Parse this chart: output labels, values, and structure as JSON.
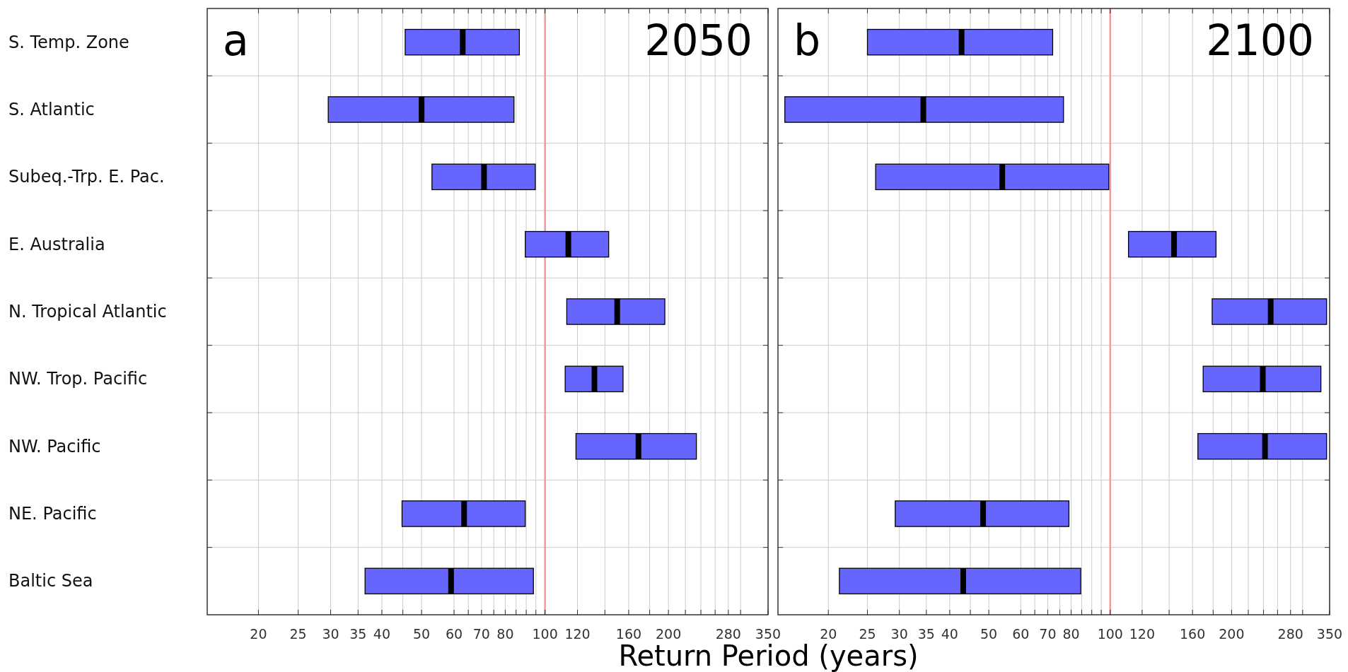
{
  "chart_data": [
    {
      "type": "box",
      "orientation": "horizontal",
      "title": "2050",
      "annotations": [
        "a"
      ],
      "xlabel": "Return Period (years)",
      "categories": [
        "S. Temp. Zone",
        "S. Atlantic",
        "Subeq.-Trp. E. Pac.",
        "E. Australia",
        "N. Tropical Atlantic",
        "NW. Trop. Pacific",
        "NW. Pacific",
        "NE. Pacific",
        "Baltic Sea"
      ],
      "color": "#6666ff",
      "boxes": [
        {
          "low": 45.6,
          "q1": 45.6,
          "median": 63,
          "q3": 86.6,
          "high": 86.6
        },
        {
          "low": 29.6,
          "q1": 29.6,
          "median": 50,
          "q3": 84,
          "high": 84
        },
        {
          "low": 53,
          "q1": 53,
          "median": 71,
          "q3": 94.7,
          "high": 94.7
        },
        {
          "low": 89.5,
          "q1": 89.5,
          "median": 114,
          "q3": 143,
          "high": 143
        },
        {
          "low": 113,
          "q1": 113,
          "median": 150,
          "q3": 196,
          "high": 196
        },
        {
          "low": 112,
          "q1": 112,
          "median": 132,
          "q3": 155,
          "high": 155
        },
        {
          "low": 119,
          "q1": 119,
          "median": 169,
          "q3": 234,
          "high": 234
        },
        {
          "low": 44.8,
          "q1": 44.8,
          "median": 63.5,
          "q3": 89.5,
          "high": 89.5
        },
        {
          "low": 36.4,
          "q1": 36.4,
          "median": 59,
          "q3": 93.7,
          "high": 93.7
        }
      ],
      "log": "x",
      "xlim": [
        15,
        350
      ],
      "xticks": [
        20,
        25,
        30,
        35,
        40,
        {
          "value": 45,
          "label": null
        },
        50,
        60,
        {
          "value": 65,
          "label": null
        },
        70,
        {
          "value": 75,
          "label": null
        },
        80,
        {
          "value": 85,
          "label": null
        },
        {
          "value": 90,
          "label": null
        },
        {
          "value": 95,
          "label": null
        },
        100,
        120,
        {
          "value": 140,
          "label": null
        },
        160,
        {
          "value": 180,
          "label": null
        },
        200,
        {
          "value": 220,
          "label": null
        },
        {
          "value": 240,
          "label": null
        },
        {
          "value": 260,
          "label": null
        },
        280,
        {
          "value": 300,
          "label": null
        },
        350
      ],
      "ref_lines": [
        {
          "axis": "x",
          "value": 100,
          "color": "#f09a9a"
        }
      ],
      "grid": true
    },
    {
      "type": "box",
      "orientation": "horizontal",
      "title": "2100",
      "annotations": [
        "b"
      ],
      "categories": [
        null,
        null,
        null,
        null,
        null,
        null,
        null,
        null,
        null
      ],
      "color": "#6666ff",
      "boxes": [
        {
          "low": 25,
          "q1": 25,
          "median": 42.8,
          "q3": 72,
          "high": 72
        },
        {
          "low": 15.6,
          "q1": 15.6,
          "median": 34.4,
          "q3": 76.6,
          "high": 76.6
        },
        {
          "low": 26.2,
          "q1": 26.2,
          "median": 54,
          "q3": 99.2,
          "high": 99.2
        },
        {
          "low": 111,
          "q1": 111,
          "median": 144,
          "q3": 183,
          "high": 183
        },
        {
          "low": 179,
          "q1": 179,
          "median": 250,
          "q3": 344,
          "high": 344
        },
        {
          "low": 170,
          "q1": 170,
          "median": 239,
          "q3": 333,
          "high": 333
        },
        {
          "low": 165,
          "q1": 165,
          "median": 242,
          "q3": 344,
          "high": 344
        },
        {
          "low": 29.3,
          "q1": 29.3,
          "median": 48.4,
          "q3": 79,
          "high": 79
        },
        {
          "low": 21.3,
          "q1": 21.3,
          "median": 43.2,
          "q3": 84.5,
          "high": 84.5
        }
      ],
      "log": "x",
      "xlim": [
        15,
        350
      ],
      "xticks": [
        20,
        25,
        30,
        35,
        40,
        {
          "value": 45,
          "label": null
        },
        50,
        60,
        {
          "value": 65,
          "label": null
        },
        70,
        {
          "value": 75,
          "label": null
        },
        80,
        {
          "value": 85,
          "label": null
        },
        {
          "value": 90,
          "label": null
        },
        {
          "value": 95,
          "label": null
        },
        100,
        120,
        {
          "value": 140,
          "label": null
        },
        160,
        {
          "value": 180,
          "label": null
        },
        200,
        {
          "value": 220,
          "label": null
        },
        {
          "value": 240,
          "label": null
        },
        {
          "value": 260,
          "label": null
        },
        280,
        {
          "value": 300,
          "label": null
        },
        350
      ],
      "ref_lines": [
        {
          "axis": "x",
          "value": 100,
          "color": "#f09a9a"
        }
      ],
      "grid": true,
      "tick_labels": "x"
    }
  ]
}
